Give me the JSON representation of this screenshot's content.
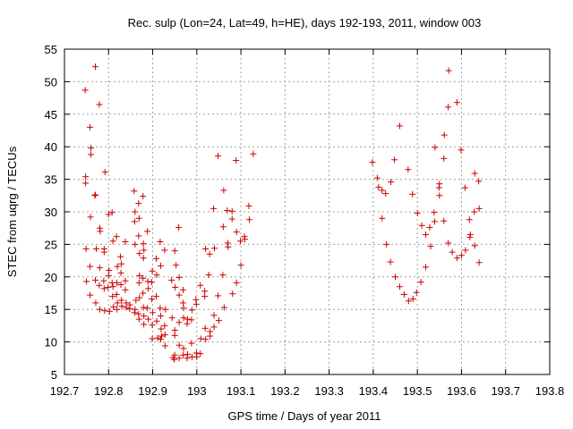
{
  "chart_data": {
    "type": "scatter",
    "title": "Rec. sulp (Lon=24, Lat=49, h=HE), days 192-193, 2011, window 003",
    "xlabel": "GPS time / Days of year 2011",
    "ylabel": "STEC from uqrg / TECUs",
    "xlim": [
      192.7,
      193.8
    ],
    "ylim": [
      5,
      55
    ],
    "xticks": [
      "192.7",
      "192.8",
      "192.9",
      "193",
      "193.1",
      "193.2",
      "193.3",
      "193.4",
      "193.5",
      "193.6",
      "193.7",
      "193.8"
    ],
    "yticks": [
      "5",
      "10",
      "15",
      "20",
      "25",
      "30",
      "35",
      "40",
      "45",
      "50",
      "55"
    ],
    "grid": true,
    "marker": "plus",
    "color": "#cc0000",
    "points": [
      [
        192.747,
        48.7
      ],
      [
        192.748,
        35.4
      ],
      [
        192.748,
        34.4
      ],
      [
        192.749,
        24.3
      ],
      [
        192.75,
        19.3
      ],
      [
        192.758,
        43.0
      ],
      [
        192.76,
        39.8
      ],
      [
        192.76,
        38.8
      ],
      [
        192.759,
        29.2
      ],
      [
        192.758,
        21.6
      ],
      [
        192.758,
        17.2
      ],
      [
        192.77,
        52.3
      ],
      [
        192.77,
        32.6
      ],
      [
        192.769,
        32.5
      ],
      [
        192.772,
        24.3
      ],
      [
        192.77,
        19.5
      ],
      [
        192.771,
        16.0
      ],
      [
        192.779,
        46.5
      ],
      [
        192.78,
        27.5
      ],
      [
        192.781,
        27.0
      ],
      [
        192.78,
        21.4
      ],
      [
        192.779,
        18.7
      ],
      [
        192.78,
        15.0
      ],
      [
        192.792,
        36.1
      ],
      [
        192.79,
        24.3
      ],
      [
        192.79,
        23.8
      ],
      [
        192.789,
        19.4
      ],
      [
        192.79,
        18.2
      ],
      [
        192.791,
        14.8
      ],
      [
        192.8,
        29.6
      ],
      [
        192.801,
        21.0
      ],
      [
        192.8,
        20.2
      ],
      [
        192.799,
        18.4
      ],
      [
        192.802,
        14.7
      ],
      [
        192.808,
        29.9
      ],
      [
        192.81,
        25.5
      ],
      [
        192.808,
        19.1
      ],
      [
        192.81,
        18.5
      ],
      [
        192.809,
        17.0
      ],
      [
        192.811,
        15.4
      ],
      [
        192.818,
        26.2
      ],
      [
        192.82,
        21.6
      ],
      [
        192.819,
        19.1
      ],
      [
        192.818,
        17.3
      ],
      [
        192.82,
        16.0
      ],
      [
        192.819,
        15.0
      ],
      [
        192.827,
        23.1
      ],
      [
        192.829,
        22.0
      ],
      [
        192.828,
        20.6
      ],
      [
        192.828,
        18.8
      ],
      [
        192.829,
        16.4
      ],
      [
        192.83,
        15.5
      ],
      [
        192.838,
        25.4
      ],
      [
        192.838,
        19.4
      ],
      [
        192.838,
        18.0
      ],
      [
        192.84,
        16.0
      ],
      [
        192.84,
        15.3
      ],
      [
        192.848,
        15.7
      ],
      [
        192.848,
        15.1
      ],
      [
        192.858,
        33.2
      ],
      [
        192.86,
        30.0
      ],
      [
        192.859,
        28.5
      ],
      [
        192.86,
        25.0
      ],
      [
        192.86,
        15.0
      ],
      [
        192.859,
        14.5
      ],
      [
        192.862,
        16.4
      ],
      [
        192.868,
        31.3
      ],
      [
        192.869,
        29.0
      ],
      [
        192.868,
        26.3
      ],
      [
        192.87,
        23.6
      ],
      [
        192.87,
        20.2
      ],
      [
        192.869,
        19.1
      ],
      [
        192.87,
        16.8
      ],
      [
        192.868,
        14.3
      ],
      [
        192.869,
        13.5
      ],
      [
        192.878,
        32.4
      ],
      [
        192.879,
        25.1
      ],
      [
        192.88,
        24.1
      ],
      [
        192.879,
        22.9
      ],
      [
        192.878,
        19.8
      ],
      [
        192.878,
        17.5
      ],
      [
        192.879,
        15.3
      ],
      [
        192.88,
        14.0
      ],
      [
        192.88,
        12.7
      ],
      [
        192.888,
        27.0
      ],
      [
        192.889,
        19.3
      ],
      [
        192.89,
        18.2
      ],
      [
        192.888,
        15.2
      ],
      [
        192.89,
        13.5
      ],
      [
        192.899,
        20.9
      ],
      [
        192.898,
        19.2
      ],
      [
        192.898,
        16.6
      ],
      [
        192.9,
        14.5
      ],
      [
        192.899,
        12.6
      ],
      [
        192.899,
        10.5
      ],
      [
        192.908,
        22.8
      ],
      [
        192.909,
        20.3
      ],
      [
        192.908,
        17.0
      ],
      [
        192.909,
        13.2
      ],
      [
        192.911,
        10.6
      ],
      [
        192.917,
        25.4
      ],
      [
        192.918,
        21.7
      ],
      [
        192.917,
        15.2
      ],
      [
        192.918,
        14.0
      ],
      [
        192.919,
        12.0
      ],
      [
        192.92,
        10.9
      ],
      [
        192.918,
        10.4
      ],
      [
        192.927,
        24.1
      ],
      [
        192.929,
        15.0
      ],
      [
        192.927,
        12.5
      ],
      [
        192.928,
        11.1
      ],
      [
        192.928,
        9.4
      ],
      [
        192.944,
        13.7
      ],
      [
        192.946,
        7.6
      ],
      [
        192.943,
        19.5
      ],
      [
        192.95,
        24.0
      ],
      [
        192.953,
        21.8
      ],
      [
        192.951,
        18.4
      ],
      [
        192.95,
        11.8
      ],
      [
        192.95,
        11.0
      ],
      [
        192.95,
        8.0
      ],
      [
        192.949,
        7.3
      ],
      [
        192.96,
        19.9
      ],
      [
        192.96,
        17.2
      ],
      [
        192.96,
        13.0
      ],
      [
        192.96,
        9.5
      ],
      [
        192.96,
        7.5
      ],
      [
        192.959,
        27.6
      ],
      [
        192.969,
        18.0
      ],
      [
        192.969,
        16.0
      ],
      [
        192.97,
        15.2
      ],
      [
        192.97,
        13.7
      ],
      [
        192.97,
        9.0
      ],
      [
        192.969,
        8.0
      ],
      [
        192.979,
        13.5
      ],
      [
        192.978,
        12.8
      ],
      [
        192.979,
        8.1
      ],
      [
        192.978,
        7.5
      ],
      [
        192.989,
        14.9
      ],
      [
        192.988,
        13.4
      ],
      [
        192.988,
        9.8
      ],
      [
        192.989,
        7.7
      ],
      [
        192.998,
        16.5
      ],
      [
        192.999,
        15.8
      ],
      [
        192.999,
        8.3
      ],
      [
        193.0,
        7.7
      ],
      [
        193.008,
        18.7
      ],
      [
        193.009,
        10.5
      ],
      [
        193.008,
        8.2
      ],
      [
        193.018,
        17.8
      ],
      [
        193.018,
        17.0
      ],
      [
        193.019,
        12.1
      ],
      [
        193.02,
        10.4
      ],
      [
        193.02,
        24.3
      ],
      [
        193.027,
        20.3
      ],
      [
        193.029,
        23.5
      ],
      [
        193.03,
        11.6
      ],
      [
        193.03,
        10.9
      ],
      [
        193.04,
        24.4
      ],
      [
        193.038,
        30.5
      ],
      [
        193.039,
        14.1
      ],
      [
        193.039,
        12.3
      ],
      [
        193.048,
        38.6
      ],
      [
        193.048,
        17.1
      ],
      [
        193.05,
        13.3
      ],
      [
        193.061,
        33.3
      ],
      [
        193.06,
        27.7
      ],
      [
        193.059,
        20.3
      ],
      [
        193.062,
        15.3
      ],
      [
        193.069,
        30.2
      ],
      [
        193.07,
        25.2
      ],
      [
        193.071,
        24.6
      ],
      [
        193.08,
        30.1
      ],
      [
        193.08,
        28.9
      ],
      [
        193.081,
        17.4
      ],
      [
        193.089,
        37.9
      ],
      [
        193.09,
        26.9
      ],
      [
        193.09,
        19.1
      ],
      [
        193.099,
        25.5
      ],
      [
        193.1,
        21.8
      ],
      [
        193.108,
        26.2
      ],
      [
        193.109,
        25.8
      ],
      [
        193.118,
        30.9
      ],
      [
        193.119,
        28.8
      ],
      [
        193.128,
        38.9
      ],
      [
        193.398,
        37.6
      ],
      [
        193.409,
        35.2
      ],
      [
        193.412,
        33.8
      ],
      [
        193.42,
        33.3
      ],
      [
        193.42,
        29.0
      ],
      [
        193.428,
        32.8
      ],
      [
        193.43,
        25.0
      ],
      [
        193.44,
        34.6
      ],
      [
        193.439,
        22.3
      ],
      [
        193.448,
        38.0
      ],
      [
        193.45,
        20.0
      ],
      [
        193.46,
        43.2
      ],
      [
        193.46,
        18.5
      ],
      [
        193.47,
        17.3
      ],
      [
        193.479,
        36.5
      ],
      [
        193.48,
        16.3
      ],
      [
        193.489,
        32.7
      ],
      [
        193.49,
        16.6
      ],
      [
        193.498,
        17.6
      ],
      [
        193.5,
        29.8
      ],
      [
        193.51,
        27.9
      ],
      [
        193.508,
        19.2
      ],
      [
        193.519,
        26.5
      ],
      [
        193.519,
        21.5
      ],
      [
        193.528,
        27.6
      ],
      [
        193.53,
        24.7
      ],
      [
        193.54,
        39.9
      ],
      [
        193.538,
        29.9
      ],
      [
        193.539,
        28.5
      ],
      [
        193.55,
        34.3
      ],
      [
        193.549,
        33.7
      ],
      [
        193.55,
        32.5
      ],
      [
        193.561,
        41.8
      ],
      [
        193.56,
        38.2
      ],
      [
        193.56,
        28.6
      ],
      [
        193.571,
        51.7
      ],
      [
        193.57,
        46.1
      ],
      [
        193.57,
        25.2
      ],
      [
        193.579,
        23.8
      ],
      [
        193.59,
        46.8
      ],
      [
        193.59,
        22.9
      ],
      [
        193.599,
        39.5
      ],
      [
        193.6,
        23.3
      ],
      [
        193.608,
        33.7
      ],
      [
        193.609,
        24.1
      ],
      [
        193.618,
        28.8
      ],
      [
        193.62,
        26.5
      ],
      [
        193.619,
        26.1
      ],
      [
        193.63,
        35.9
      ],
      [
        193.629,
        30.0
      ],
      [
        193.63,
        24.8
      ],
      [
        193.639,
        34.7
      ],
      [
        193.64,
        30.5
      ],
      [
        193.64,
        22.2
      ]
    ]
  }
}
